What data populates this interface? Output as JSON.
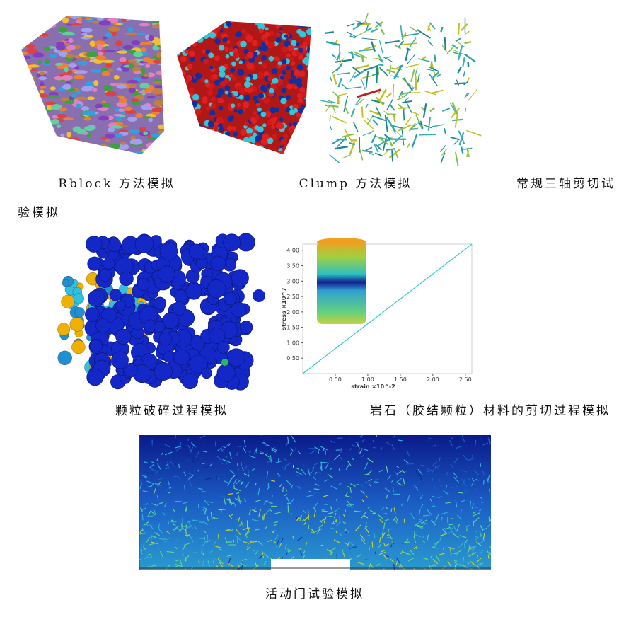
{
  "figures": [
    {
      "caption": "Rblock 方法模拟"
    },
    {
      "caption": "Clump 方法模拟"
    },
    {
      "caption": "常规三轴剪切试验模拟"
    },
    {
      "caption": "颗粒破碎过程模拟"
    },
    {
      "caption": "岩石（胶结颗粒）材料的剪切过程模拟",
      "plot": {
        "type": "line",
        "xlabel": "strain ×10^-2",
        "ylabel": "stress ×10^7",
        "x": [
          0,
          2.6
        ],
        "values": [
          0,
          4.2
        ],
        "color": "#33cccc",
        "xlim": [
          0,
          2.6
        ],
        "ylim": [
          0,
          4.2
        ],
        "xticks": [
          {
            "value": 0.5,
            "label": "0.50"
          },
          {
            "value": 1,
            "label": "1.00"
          },
          {
            "value": 1.5,
            "label": "1.50"
          },
          {
            "value": 2,
            "label": "2.00"
          },
          {
            "value": 2.5,
            "label": "2.50"
          }
        ],
        "yticks": [
          {
            "value": 0.5,
            "label": "0.50"
          },
          {
            "value": 1,
            "label": "1.00"
          },
          {
            "value": 1.5,
            "label": "1.50"
          },
          {
            "value": 2,
            "label": "2.00"
          },
          {
            "value": 2.5,
            "label": "2.50"
          },
          {
            "value": 3,
            "label": "3.00"
          },
          {
            "value": 3.5,
            "label": "3.50"
          },
          {
            "value": 4,
            "label": "4.00"
          }
        ]
      }
    },
    {
      "caption": "活动门试验模拟"
    }
  ]
}
